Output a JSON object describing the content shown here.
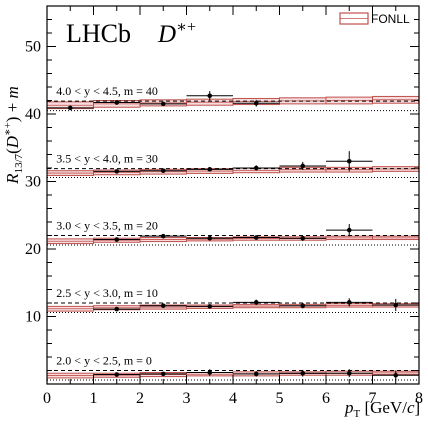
{
  "chart_data": {
    "type": "scatter",
    "experiment": "LHCb",
    "particle": "D*+",
    "xlabel": "p_T [GeV/c]",
    "ylabel": "R_13/7(D*+) + m",
    "xlim": [
      0,
      8
    ],
    "ylim": [
      0,
      56
    ],
    "x_ticks": [
      0,
      1,
      2,
      3,
      4,
      5,
      6,
      7,
      8
    ],
    "y_ticks": [
      10,
      20,
      30,
      40,
      50
    ],
    "legend": {
      "label": "FONLL",
      "position": "top-right"
    },
    "bin_edges": [
      0,
      1,
      2,
      3,
      4,
      5,
      6,
      7,
      8
    ],
    "series": [
      {
        "name": "2.0 < y < 2.5, m = 0",
        "label": "2.0 < y < 2.5, m = 0",
        "offset": 0,
        "points": [
          {
            "x": 1.5,
            "y": 1.4,
            "err": 0.3
          },
          {
            "x": 2.5,
            "y": 1.5,
            "err": 0.3
          },
          {
            "x": 3.5,
            "y": 1.7,
            "err": 0.5
          },
          {
            "x": 4.5,
            "y": 1.5,
            "err": 0.4
          },
          {
            "x": 5.5,
            "y": 1.6,
            "err": 0.5
          },
          {
            "x": 6.5,
            "y": 1.6,
            "err": 0.6
          },
          {
            "x": 7.5,
            "y": 1.3,
            "err": 0.7
          }
        ],
        "fonll_low": [
          0.9,
          1.0,
          1.1,
          1.2,
          1.2,
          1.3,
          1.3,
          1.4
        ],
        "fonll_high": [
          1.6,
          1.6,
          1.7,
          1.7,
          1.8,
          1.8,
          1.9,
          1.9
        ],
        "dashed": 2.0,
        "dotted": 0.6
      },
      {
        "name": "2.5 < y < 3.0, m = 10",
        "label": "2.5 < y < 3.0, m = 10",
        "offset": 10,
        "points": [
          {
            "x": 1.5,
            "y": 11.1,
            "err": 0.3
          },
          {
            "x": 2.5,
            "y": 11.6,
            "err": 0.3
          },
          {
            "x": 3.5,
            "y": 11.5,
            "err": 0.3
          },
          {
            "x": 4.5,
            "y": 12.1,
            "err": 0.4
          },
          {
            "x": 5.5,
            "y": 11.6,
            "err": 0.4
          },
          {
            "x": 6.5,
            "y": 12.1,
            "err": 0.6
          },
          {
            "x": 7.5,
            "y": 11.7,
            "err": 0.9
          }
        ],
        "fonll_low": [
          10.8,
          11.0,
          11.1,
          11.2,
          11.3,
          11.3,
          11.4,
          11.4
        ],
        "fonll_high": [
          11.5,
          11.6,
          11.7,
          11.7,
          11.8,
          11.8,
          11.9,
          11.9
        ],
        "dashed": 12.0,
        "dotted": 10.6
      },
      {
        "name": "3.0 < y < 3.5, m = 20",
        "label": "3.0 < y < 3.5, m = 20",
        "offset": 20,
        "points": [
          {
            "x": 1.5,
            "y": 21.4,
            "err": 0.3
          },
          {
            "x": 2.5,
            "y": 21.9,
            "err": 0.3
          },
          {
            "x": 3.5,
            "y": 21.6,
            "err": 0.3
          },
          {
            "x": 4.5,
            "y": 21.7,
            "err": 0.3
          },
          {
            "x": 5.5,
            "y": 21.6,
            "err": 0.4
          },
          {
            "x": 6.5,
            "y": 22.8,
            "err": 0.9
          }
        ],
        "fonll_low": [
          20.8,
          21.0,
          21.1,
          21.2,
          21.3,
          21.3,
          21.4,
          21.4
        ],
        "fonll_high": [
          21.5,
          21.6,
          21.7,
          21.7,
          21.8,
          21.8,
          21.9,
          21.9
        ],
        "dashed": 22.0,
        "dotted": 20.6
      },
      {
        "name": "3.5 < y < 4.0, m = 30",
        "label": "3.5 < y < 4.0, m = 30",
        "offset": 30,
        "points": [
          {
            "x": 1.5,
            "y": 31.5,
            "err": 0.3
          },
          {
            "x": 2.5,
            "y": 31.6,
            "err": 0.3
          },
          {
            "x": 3.5,
            "y": 31.8,
            "err": 0.3
          },
          {
            "x": 4.5,
            "y": 32.0,
            "err": 0.4
          },
          {
            "x": 5.5,
            "y": 32.3,
            "err": 0.6
          },
          {
            "x": 6.5,
            "y": 33.0,
            "err": 1.5
          }
        ],
        "fonll_low": [
          30.9,
          31.0,
          31.1,
          31.2,
          31.3,
          31.4,
          31.4,
          31.5
        ],
        "fonll_high": [
          31.6,
          31.7,
          31.8,
          31.9,
          32.0,
          32.1,
          32.1,
          32.2
        ],
        "dashed": 31.9,
        "dotted": 30.6
      },
      {
        "name": "4.0 < y < 4.5, m = 40",
        "label": "4.0 < y < 4.5, m = 40",
        "offset": 40,
        "points": [
          {
            "x": 0.5,
            "y": 40.9,
            "err": 0.3
          },
          {
            "x": 1.5,
            "y": 41.7,
            "err": 0.3
          },
          {
            "x": 2.5,
            "y": 41.5,
            "err": 0.3
          },
          {
            "x": 3.5,
            "y": 42.7,
            "err": 0.7
          },
          {
            "x": 4.5,
            "y": 41.6,
            "err": 0.5
          }
        ],
        "fonll_low": [
          40.8,
          41.0,
          41.2,
          41.3,
          41.4,
          41.5,
          41.5,
          41.6
        ],
        "fonll_high": [
          41.8,
          42.0,
          42.1,
          42.2,
          42.3,
          42.4,
          42.5,
          42.6
        ],
        "dashed": 41.9,
        "dotted": 40.5
      }
    ]
  },
  "colors": {
    "fonll_band": "#c0504d",
    "fonll_fill": "#f6dcdc",
    "points": "#000000",
    "axes": "#000000"
  }
}
